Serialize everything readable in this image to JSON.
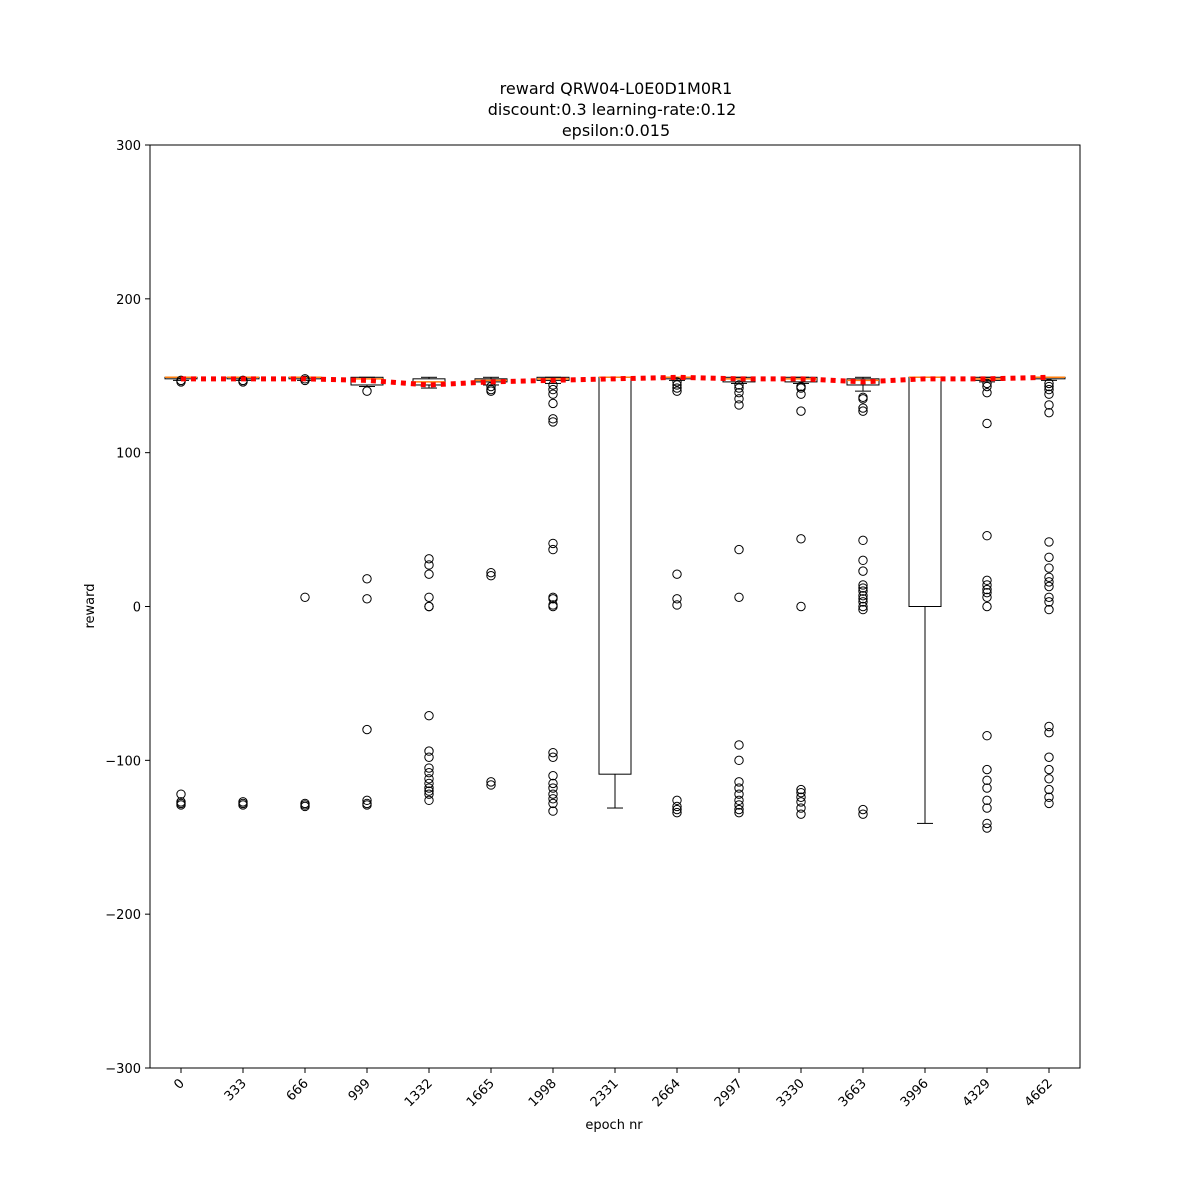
{
  "chart_data": {
    "type": "box",
    "title_lines": [
      "reward QRW04-L0E0D1M0R1",
      "discount:0.3 learning-rate:0.12",
      "epsilon:0.015"
    ],
    "xlabel": "epoch nr",
    "ylabel": "reward",
    "ylim": [
      -300,
      300
    ],
    "yticks": [
      -300,
      -200,
      -100,
      0,
      100,
      200,
      300
    ],
    "ytick_labels": [
      "−300",
      "−200",
      "−100",
      "0",
      "100",
      "200",
      "300"
    ],
    "categories": [
      "0",
      "333",
      "666",
      "999",
      "1332",
      "1665",
      "1998",
      "2331",
      "2664",
      "2997",
      "3330",
      "3663",
      "3996",
      "4329",
      "4662"
    ],
    "boxes": [
      {
        "q1": 148,
        "median": 149,
        "q3": 149,
        "whislo": 147,
        "whishi": 149,
        "fliers": [
          147,
          146,
          -122,
          -127,
          -128,
          -129
        ]
      },
      {
        "q1": 148,
        "median": 149,
        "q3": 149,
        "whislo": 147,
        "whishi": 149,
        "fliers": [
          146,
          147,
          -127,
          -128,
          -129
        ]
      },
      {
        "q1": 148,
        "median": 149,
        "q3": 149,
        "whislo": 147,
        "whishi": 149,
        "fliers": [
          147,
          148,
          6,
          -128,
          -129,
          -130
        ]
      },
      {
        "q1": 144,
        "median": 148,
        "q3": 149,
        "whislo": 143,
        "whishi": 149,
        "fliers": [
          140,
          18,
          5,
          -80,
          -126,
          -128,
          -129
        ]
      },
      {
        "q1": 144,
        "median": 146,
        "q3": 148,
        "whislo": 142,
        "whishi": 149,
        "fliers": [
          31,
          27,
          21,
          6,
          0,
          0,
          -71,
          -94,
          -98,
          -105,
          -108,
          -112,
          -115,
          -118,
          -120,
          -122,
          -126
        ]
      },
      {
        "q1": 146,
        "median": 147,
        "q3": 148,
        "whislo": 144,
        "whishi": 149,
        "fliers": [
          143,
          141,
          140,
          22,
          20,
          -114,
          -116
        ]
      },
      {
        "q1": 147,
        "median": 148,
        "q3": 149,
        "whislo": 145,
        "whishi": 149,
        "fliers": [
          144,
          141,
          138,
          132,
          122,
          120,
          41,
          37,
          6,
          5,
          1,
          0,
          -95,
          -98,
          -110,
          -115,
          -118,
          -122,
          -125,
          -128,
          -133
        ]
      },
      {
        "q1": -109,
        "median": 149,
        "q3": 149,
        "whislo": -131,
        "whishi": 149,
        "fliers": []
      },
      {
        "q1": 148,
        "median": 149,
        "q3": 149,
        "whislo": 147,
        "whishi": 149,
        "fliers": [
          146,
          144,
          142,
          140,
          21,
          5,
          1,
          -126,
          -130,
          -132,
          -134
        ]
      },
      {
        "q1": 146,
        "median": 148,
        "q3": 149,
        "whislo": 145,
        "whishi": 149,
        "fliers": [
          144,
          142,
          139,
          135,
          131,
          37,
          6,
          -90,
          -100,
          -114,
          -118,
          -122,
          -126,
          -129,
          -132,
          -134
        ]
      },
      {
        "q1": 146,
        "median": 148,
        "q3": 149,
        "whislo": 145,
        "whishi": 149,
        "fliers": [
          143,
          142,
          138,
          127,
          44,
          0,
          -119,
          -121,
          -124,
          -127,
          -131,
          -135
        ]
      },
      {
        "q1": 144,
        "median": 147,
        "q3": 148,
        "whislo": 140,
        "whishi": 149,
        "fliers": [
          136,
          135,
          129,
          127,
          43,
          30,
          23,
          14,
          12,
          10,
          7,
          5,
          3,
          0,
          -2,
          -132,
          -135
        ]
      },
      {
        "q1": 0,
        "median": 149,
        "q3": 149,
        "whislo": -141,
        "whishi": 149,
        "fliers": []
      },
      {
        "q1": 147,
        "median": 148,
        "q3": 149,
        "whislo": 146,
        "whishi": 149,
        "fliers": [
          145,
          143,
          139,
          119,
          46,
          17,
          14,
          11,
          9,
          6,
          0,
          -84,
          -106,
          -113,
          -118,
          -126,
          -131,
          -141,
          -144
        ]
      },
      {
        "q1": 148,
        "median": 149,
        "q3": 149,
        "whislo": 147,
        "whishi": 149,
        "fliers": [
          145,
          143,
          141,
          138,
          131,
          126,
          42,
          32,
          25,
          19,
          16,
          13,
          6,
          3,
          -2,
          -78,
          -82,
          -98,
          -106,
          -112,
          -119,
          -124,
          -128
        ]
      }
    ],
    "mean_line": [
      148,
      148,
      148,
      147,
      144,
      146,
      147,
      148,
      149,
      148,
      148,
      146,
      148,
      148,
      149
    ],
    "colors": {
      "median": "#ff7f0e",
      "mean_line": "#ff0000",
      "box": "#000000"
    }
  }
}
